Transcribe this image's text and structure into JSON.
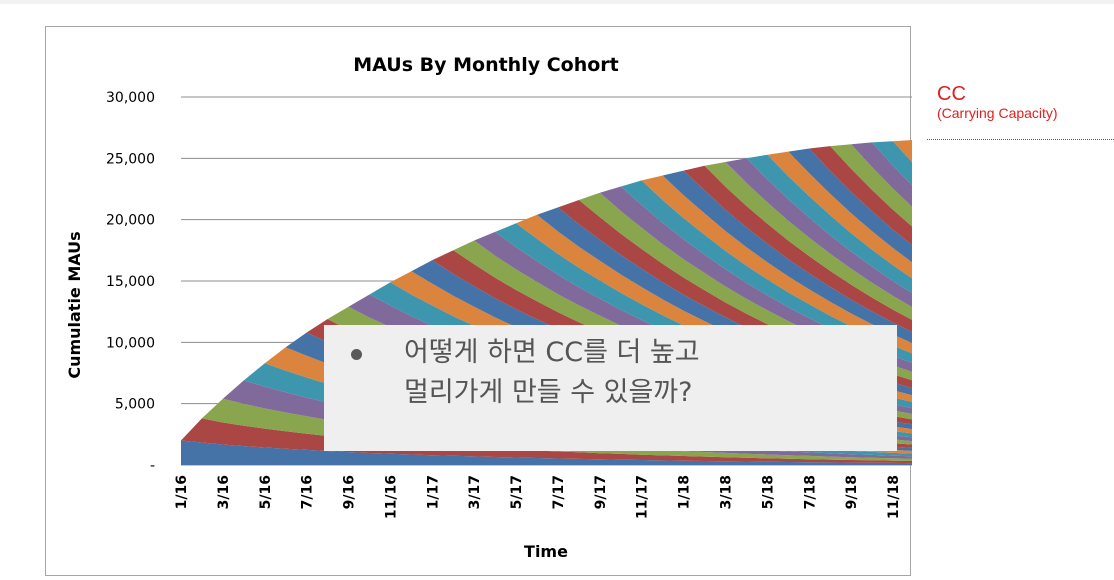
{
  "chart_data": {
    "type": "area",
    "title": "MAUs By Monthly Cohort",
    "xlabel": "Time",
    "ylabel": "Cumulatie MAUs",
    "ylim": [
      0,
      30000
    ],
    "y_ticks": [
      "-",
      "5,000",
      "10,000",
      "15,000",
      "20,000",
      "25,000",
      "30,000"
    ],
    "x_tick_labels": [
      "1/16",
      "3/16",
      "5/16",
      "7/16",
      "9/16",
      "11/16",
      "1/17",
      "3/17",
      "5/17",
      "7/17",
      "9/17",
      "11/17",
      "1/18",
      "3/18",
      "5/18",
      "7/18",
      "9/18",
      "11/18"
    ],
    "months": [
      "1/16",
      "2/16",
      "3/16",
      "4/16",
      "5/16",
      "6/16",
      "7/16",
      "8/16",
      "9/16",
      "10/16",
      "11/16",
      "12/16",
      "1/17",
      "2/17",
      "3/17",
      "4/17",
      "5/17",
      "6/17",
      "7/17",
      "8/17",
      "9/17",
      "10/17",
      "11/17",
      "12/17",
      "1/18",
      "2/18",
      "3/18",
      "4/18",
      "5/18",
      "6/18",
      "7/18",
      "8/18",
      "9/18",
      "10/18",
      "11/18",
      "12/18"
    ],
    "total_cumulative_maus": [
      2000,
      3800,
      5400,
      6900,
      8300,
      9600,
      10800,
      11900,
      12900,
      13900,
      14900,
      15800,
      16700,
      17500,
      18300,
      19000,
      19700,
      20400,
      21000,
      21600,
      22200,
      22700,
      23200,
      23600,
      24000,
      24400,
      24700,
      25000,
      25300,
      25550,
      25800,
      26000,
      26150,
      26300,
      26400,
      26500
    ],
    "series_description": "one stacked band per monthly cohort (36 cohorts), each decaying over time",
    "grid": true,
    "colors": [
      "#4572a7",
      "#aa4643",
      "#89a54e",
      "#80699b",
      "#3d96ae",
      "#db843d"
    ]
  },
  "annotation": {
    "cc_title": "CC",
    "cc_subtitle": "(Carrying Capacity)",
    "color": "#e0201e"
  },
  "callout": {
    "text": "어떻게 하면 CC를 더 높고\n멀리가게 만들 수 있을까?"
  }
}
